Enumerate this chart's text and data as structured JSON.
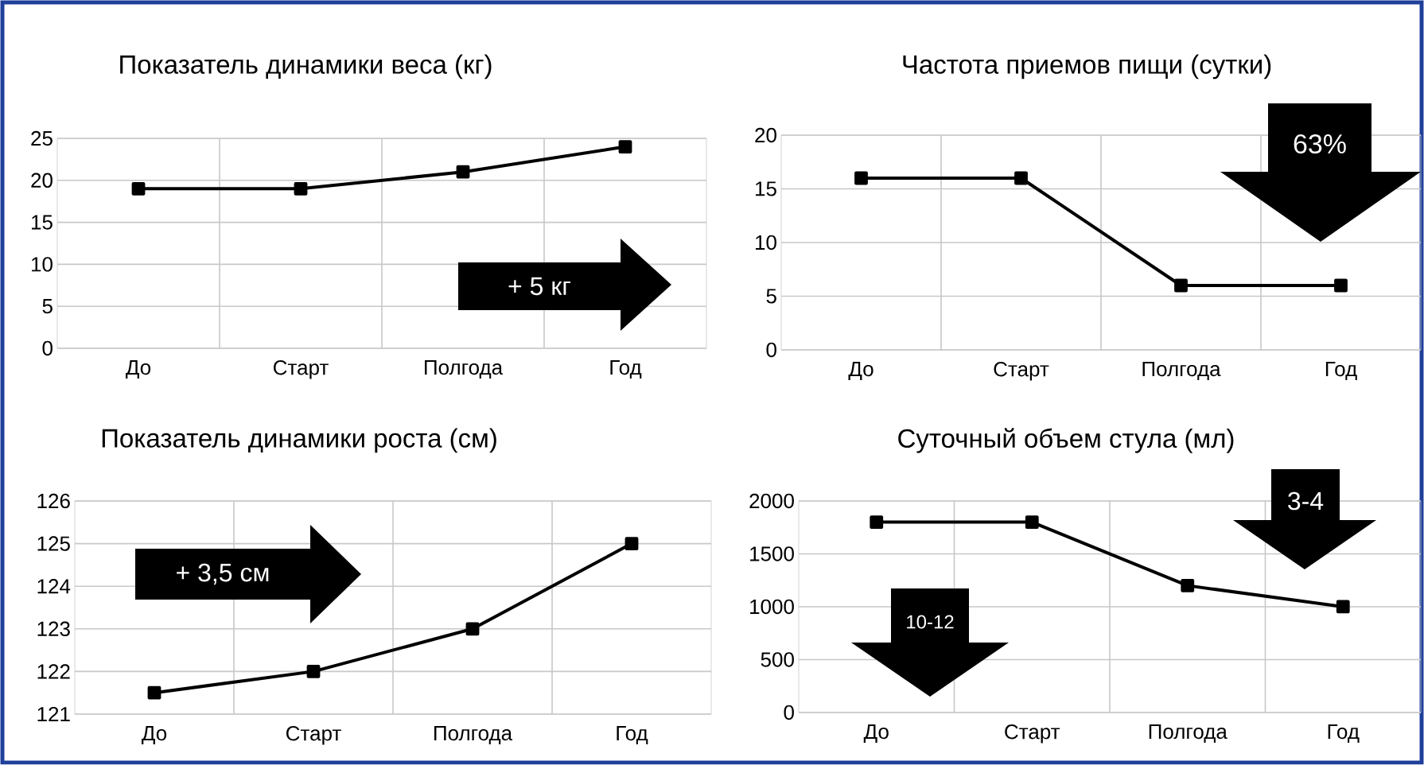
{
  "chart_data": [
    {
      "type": "line",
      "title": "Показатель динамики веса (кг)",
      "categories": [
        "До",
        "Старт",
        "Полгода",
        "Год"
      ],
      "series": [
        {
          "color": "#000000",
          "values": [
            19,
            19,
            21,
            24
          ]
        }
      ],
      "ylim": [
        0,
        25
      ],
      "yticks": [
        0,
        5,
        10,
        15,
        20,
        25
      ],
      "grid": true,
      "marker": "square",
      "line_style": "solid",
      "annotations": [
        "+ 5 кг"
      ]
    },
    {
      "type": "line",
      "title": "Частота приемов пищи (сутки)",
      "categories": [
        "До",
        "Старт",
        "Полгода",
        "Год"
      ],
      "series": [
        {
          "color": "#000000",
          "values": [
            16,
            16,
            6,
            6
          ]
        }
      ],
      "ylim": [
        0,
        20
      ],
      "yticks": [
        0,
        5,
        10,
        15,
        20
      ],
      "grid": true,
      "marker": "square",
      "line_style": "solid",
      "annotations": [
        "63%"
      ]
    },
    {
      "type": "line",
      "title": "Показатель динамики роста (см)",
      "categories": [
        "До",
        "Старт",
        "Полгода",
        "Год"
      ],
      "series": [
        {
          "color": "#000000",
          "values": [
            121.5,
            122,
            123,
            125
          ]
        }
      ],
      "ylim": [
        121,
        126
      ],
      "yticks": [
        121,
        122,
        123,
        124,
        125,
        126
      ],
      "grid": true,
      "marker": "square",
      "line_style": "solid",
      "annotations": [
        "+ 3,5 см"
      ]
    },
    {
      "type": "line",
      "title": "Суточный объем стула (мл)",
      "categories": [
        "До",
        "Старт",
        "Полгода",
        "Год"
      ],
      "series": [
        {
          "color": "#000000",
          "values": [
            1800,
            1800,
            1200,
            1000
          ]
        }
      ],
      "ylim": [
        0,
        2000
      ],
      "yticks": [
        0,
        500,
        1000,
        1500,
        2000
      ],
      "grid": true,
      "marker": "square",
      "line_style": "solid",
      "annotations": [
        "10-12",
        "3-4"
      ]
    }
  ]
}
